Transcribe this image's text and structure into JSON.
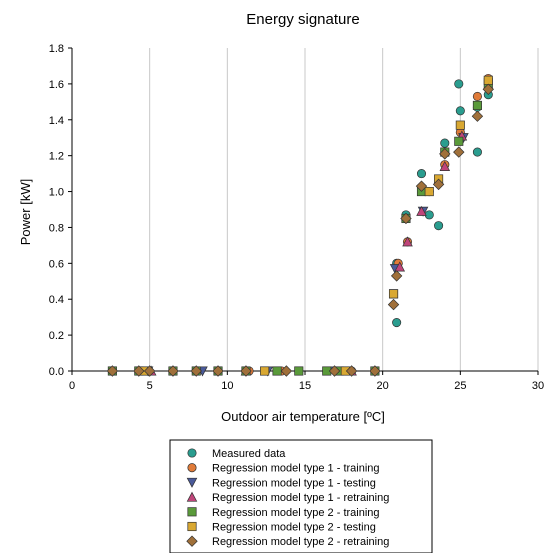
{
  "chart_data": {
    "type": "scatter",
    "title": "Energy signature",
    "xlabel": "Outdoor air temperature [ºC]",
    "ylabel": "Power [kW]",
    "xlim": [
      0,
      30
    ],
    "ylim": [
      0,
      1.8
    ],
    "x_ticks": [
      "0",
      "5",
      "10",
      "15",
      "20",
      "25",
      "30"
    ],
    "y_ticks": [
      "0.0",
      "0.2",
      "0.4",
      "0.6",
      "0.8",
      "1.0",
      "1.2",
      "1.4",
      "1.6",
      "1.8"
    ],
    "grid": "vertical",
    "legend_position": "bottom",
    "series": [
      {
        "name": "Measured data",
        "marker": "circle",
        "color": "#2a9d8f",
        "points": [
          [
            2.6,
            0
          ],
          [
            4.3,
            0
          ],
          [
            4.9,
            0
          ],
          [
            6.5,
            0
          ],
          [
            8.0,
            0
          ],
          [
            9.4,
            0
          ],
          [
            11.2,
            0
          ],
          [
            13.2,
            0
          ],
          [
            14.6,
            0
          ],
          [
            16.4,
            0
          ],
          [
            17.2,
            0
          ],
          [
            18.0,
            0
          ],
          [
            19.5,
            0
          ],
          [
            20.9,
            0.27
          ],
          [
            20.9,
            0.6
          ],
          [
            21.5,
            0.87
          ],
          [
            22.5,
            1.1
          ],
          [
            23.0,
            0.87
          ],
          [
            23.6,
            0.81
          ],
          [
            24.0,
            1.27
          ],
          [
            24.9,
            1.6
          ],
          [
            25.0,
            1.45
          ],
          [
            26.1,
            1.22
          ],
          [
            26.1,
            1.47
          ],
          [
            26.8,
            1.54
          ]
        ]
      },
      {
        "name": "Regression model type 1 - training",
        "marker": "circle",
        "color": "#e07b39",
        "points": [
          [
            2.6,
            0
          ],
          [
            4.6,
            0
          ],
          [
            6.5,
            0
          ],
          [
            8.0,
            0
          ],
          [
            9.4,
            0
          ],
          [
            11.4,
            0
          ],
          [
            13.5,
            0
          ],
          [
            16.4,
            0
          ],
          [
            17.6,
            0
          ],
          [
            19.5,
            0
          ],
          [
            21.0,
            0.6
          ],
          [
            21.6,
            0.72
          ],
          [
            22.5,
            1.02
          ],
          [
            23.0,
            1.0
          ],
          [
            24.0,
            1.15
          ],
          [
            25.0,
            1.33
          ],
          [
            26.1,
            1.53
          ],
          [
            26.8,
            1.63
          ]
        ]
      },
      {
        "name": "Regression model type 1 - testing",
        "marker": "triangle-down",
        "color": "#4a5a9a",
        "points": [
          [
            4.9,
            0
          ],
          [
            8.4,
            0
          ],
          [
            12.6,
            0
          ],
          [
            16.9,
            0
          ],
          [
            20.8,
            0.57
          ],
          [
            22.6,
            0.89
          ],
          [
            25.2,
            1.3
          ]
        ]
      },
      {
        "name": "Regression model type 1 - retraining",
        "marker": "triangle-up",
        "color": "#c0457a",
        "points": [
          [
            5.1,
            0
          ],
          [
            11.2,
            0
          ],
          [
            18.0,
            0
          ],
          [
            21.1,
            0.58
          ],
          [
            21.6,
            0.72
          ],
          [
            22.5,
            0.89
          ],
          [
            24.0,
            1.14
          ],
          [
            25.1,
            1.31
          ]
        ]
      },
      {
        "name": "Regression model type 2 - training",
        "marker": "square",
        "color": "#5a9a3a",
        "points": [
          [
            2.6,
            0
          ],
          [
            4.3,
            0
          ],
          [
            6.5,
            0
          ],
          [
            8.0,
            0
          ],
          [
            9.4,
            0
          ],
          [
            11.2,
            0
          ],
          [
            13.2,
            0
          ],
          [
            14.6,
            0
          ],
          [
            16.4,
            0
          ],
          [
            17.2,
            0
          ],
          [
            19.5,
            0
          ],
          [
            20.7,
            0.43
          ],
          [
            21.5,
            0.85
          ],
          [
            22.5,
            1.0
          ],
          [
            24.0,
            1.22
          ],
          [
            24.9,
            1.28
          ],
          [
            26.1,
            1.48
          ],
          [
            26.8,
            1.6
          ]
        ]
      },
      {
        "name": "Regression model type 2 - testing",
        "marker": "square",
        "color": "#d9a832",
        "points": [
          [
            4.6,
            0
          ],
          [
            12.4,
            0
          ],
          [
            17.6,
            0
          ],
          [
            20.7,
            0.43
          ],
          [
            23.0,
            1.0
          ],
          [
            23.6,
            1.07
          ],
          [
            25.0,
            1.37
          ],
          [
            26.8,
            1.62
          ]
        ]
      },
      {
        "name": "Regression model type 2 - retraining",
        "marker": "diamond",
        "color": "#a0703a",
        "points": [
          [
            2.6,
            0
          ],
          [
            4.3,
            0
          ],
          [
            5.0,
            0
          ],
          [
            6.5,
            0
          ],
          [
            8.0,
            0
          ],
          [
            9.4,
            0
          ],
          [
            11.2,
            0
          ],
          [
            13.8,
            0
          ],
          [
            16.9,
            0
          ],
          [
            18.0,
            0
          ],
          [
            19.5,
            0
          ],
          [
            20.7,
            0.37
          ],
          [
            20.9,
            0.53
          ],
          [
            21.5,
            0.85
          ],
          [
            22.5,
            1.03
          ],
          [
            23.6,
            1.04
          ],
          [
            24.0,
            1.21
          ],
          [
            24.9,
            1.22
          ],
          [
            26.1,
            1.42
          ],
          [
            26.8,
            1.57
          ]
        ]
      }
    ]
  }
}
